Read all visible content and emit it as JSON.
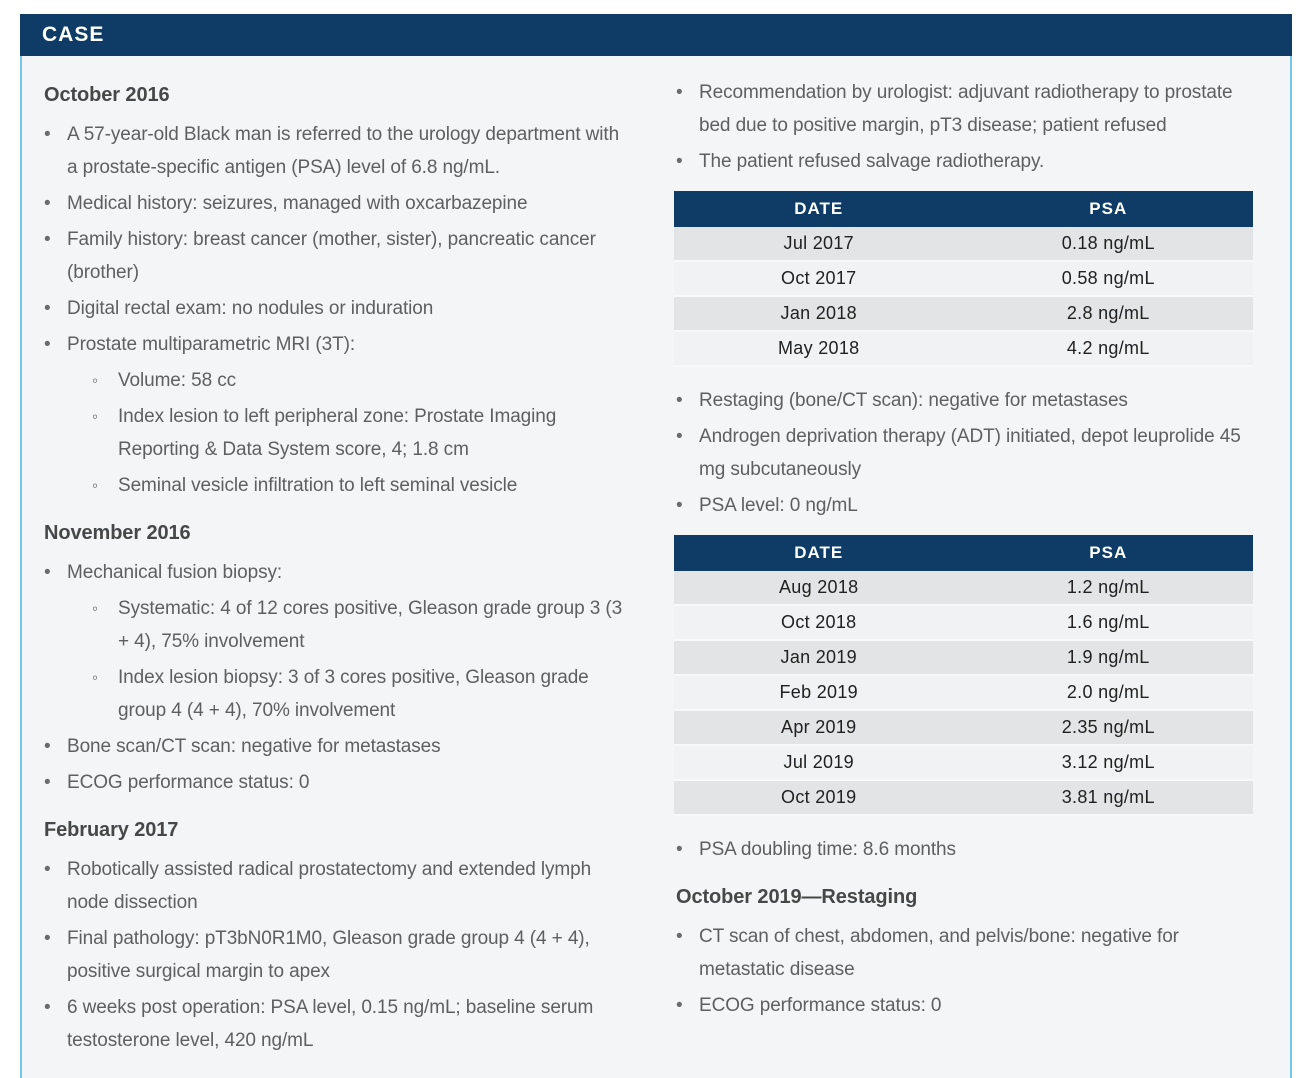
{
  "header": {
    "title": "CASE"
  },
  "colors": {
    "navy": "#0e3c66",
    "panel_border_blue": "#74c6e7",
    "panel_background": "#f3f5f6",
    "body_text_gray": "#5e5f60",
    "heading_gray": "#474747",
    "table_text": "#212121",
    "row_stripe_dark": "#e3e4e5",
    "row_stripe_light": "#f1f2f3",
    "header_text": "#ffffff"
  },
  "left_column": {
    "blocks": [
      {
        "type": "heading",
        "text": "October 2016"
      },
      {
        "type": "bullets",
        "items": [
          {
            "text": "A 57-year-old Black man is referred to the urology department with a prostate-specific antigen (PSA) level of 6.8 ng/mL."
          },
          {
            "text": "Medical history: seizures, managed with oxcarbazepine"
          },
          {
            "text": "Family history: breast cancer (mother, sister), pancreatic cancer (brother)"
          },
          {
            "text": "Digital rectal exam: no nodules or induration"
          },
          {
            "text": "Prostate multiparametric MRI (3T):",
            "sub": [
              "Volume: 58 cc",
              "Index lesion to left peripheral zone: Prostate Imaging Reporting & Data System score, 4; 1.8 cm",
              "Seminal vesicle infiltration to left seminal vesicle"
            ]
          }
        ]
      },
      {
        "type": "heading",
        "text": "November 2016"
      },
      {
        "type": "bullets",
        "items": [
          {
            "text": "Mechanical fusion biopsy:",
            "sub": [
              "Systematic: 4 of 12 cores positive, Gleason grade group 3 (3 + 4), 75% involvement",
              "Index lesion biopsy: 3 of 3 cores positive, Gleason grade group 4 (4 + 4), 70% involvement"
            ]
          },
          {
            "text": "Bone scan/CT scan: negative for metastases"
          },
          {
            "text": "ECOG performance status: 0"
          }
        ]
      },
      {
        "type": "heading",
        "text": "February 2017"
      },
      {
        "type": "bullets",
        "items": [
          {
            "text": "Robotically assisted radical prostatectomy and extended lymph node dissection"
          },
          {
            "text": "Final pathology: pT3bN0R1M0, Gleason grade group 4 (4 + 4), positive surgical margin to apex"
          },
          {
            "text": "6 weeks post operation: PSA level, 0.15 ng/mL; baseline serum testosterone level, 420 ng/mL"
          }
        ]
      }
    ]
  },
  "right_column": {
    "blocks": [
      {
        "type": "bullets",
        "items": [
          {
            "text": "Recommendation by urologist: adjuvant radiotherapy to prostate bed due to positive margin, pT3 disease; patient refused"
          },
          {
            "text": "The patient refused salvage radiotherapy."
          }
        ]
      },
      {
        "type": "table",
        "headers": [
          "DATE",
          "PSA"
        ],
        "rows": [
          [
            "Jul 2017",
            "0.18 ng/mL"
          ],
          [
            "Oct 2017",
            "0.58 ng/mL"
          ],
          [
            "Jan 2018",
            "2.8 ng/mL"
          ],
          [
            "May 2018",
            "4.2 ng/mL"
          ]
        ]
      },
      {
        "type": "bullets",
        "items": [
          {
            "text": "Restaging (bone/CT scan): negative for metastases"
          },
          {
            "text": "Androgen deprivation therapy (ADT) initiated, depot leuprolide 45 mg subcutaneously"
          },
          {
            "text": "PSA level: 0 ng/mL"
          }
        ]
      },
      {
        "type": "table",
        "headers": [
          "DATE",
          "PSA"
        ],
        "rows": [
          [
            "Aug 2018",
            "1.2 ng/mL"
          ],
          [
            "Oct 2018",
            "1.6 ng/mL"
          ],
          [
            "Jan 2019",
            "1.9 ng/mL"
          ],
          [
            "Feb 2019",
            "2.0 ng/mL"
          ],
          [
            "Apr 2019",
            "2.35 ng/mL"
          ],
          [
            "Jul 2019",
            "3.12 ng/mL"
          ],
          [
            "Oct 2019",
            "3.81 ng/mL"
          ]
        ]
      },
      {
        "type": "bullets",
        "items": [
          {
            "text": "PSA doubling time: 8.6 months"
          }
        ]
      },
      {
        "type": "heading",
        "text": "October 2019—Restaging"
      },
      {
        "type": "bullets",
        "items": [
          {
            "text": "CT scan of chest, abdomen, and pelvis/bone: negative for metastatic disease"
          },
          {
            "text": "ECOG performance status: 0"
          }
        ]
      }
    ]
  }
}
